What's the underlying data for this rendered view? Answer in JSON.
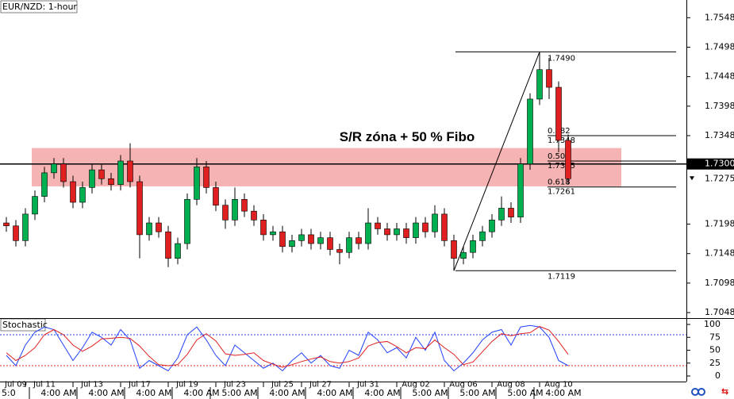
{
  "chart_data": {
    "type": "candlestick",
    "title": "EUR/NZD: 1-hour",
    "categories": [
      null,
      "Jul 09",
      null,
      null,
      "Jul 11",
      null,
      null,
      null,
      null,
      "Jul 13",
      null,
      null,
      null,
      null,
      "Jul 17",
      null,
      null,
      null,
      null,
      "Jul 19",
      null,
      null,
      null,
      null,
      "Jul 23",
      null,
      null,
      null,
      null,
      "Jul 25",
      null,
      null,
      null,
      "Jul 27",
      null,
      null,
      null,
      null,
      "Jul 31",
      null,
      null,
      null,
      null,
      "Aug 02",
      null,
      null,
      null,
      null,
      "Aug 06",
      null,
      null,
      null,
      null,
      "Aug 08",
      null,
      null,
      null,
      null,
      "Aug 10",
      null
    ],
    "time_labels": [
      "5:0",
      null,
      null,
      null,
      null,
      "4:00 AM",
      null,
      null,
      null,
      null,
      "4:00 AM",
      null,
      null,
      null,
      null,
      "4:00 AM",
      null,
      null,
      null,
      null,
      "4:00 AM",
      null,
      null,
      null,
      "5:00 AM",
      null,
      null,
      null,
      null,
      "4:00 AM",
      null,
      null,
      null,
      null,
      "4:00 AM",
      null,
      null,
      null,
      null,
      "4:00 AM",
      null,
      null,
      null,
      null,
      "5:00 AM",
      null,
      null,
      null,
      null,
      "5:00 AM",
      null,
      null,
      null,
      null,
      "5:00 AM",
      null,
      null,
      null,
      "4:00 AM",
      null
    ],
    "open": [
      1.72,
      1.7195,
      1.717,
      1.7215,
      1.7245,
      1.7285,
      1.73,
      1.727,
      1.7235,
      1.726,
      1.729,
      1.7275,
      1.7265,
      1.7305,
      1.727,
      1.718,
      1.72,
      1.7185,
      1.714,
      1.7165,
      1.724,
      1.7295,
      1.726,
      1.723,
      1.7205,
      1.724,
      1.722,
      1.7205,
      1.718,
      1.7185,
      1.716,
      1.717,
      1.718,
      1.7165,
      1.7175,
      1.7155,
      1.715,
      1.7175,
      1.7165,
      1.72,
      1.719,
      1.718,
      1.719,
      1.7175,
      1.72,
      1.7185,
      1.7215,
      1.717,
      1.714,
      1.715,
      1.717,
      1.7185,
      1.7205,
      1.7225,
      1.721,
      1.73,
      1.741,
      1.746,
      1.743,
      1.734
    ],
    "high": [
      1.721,
      1.7205,
      1.7225,
      1.7255,
      1.7295,
      1.731,
      1.731,
      1.728,
      1.727,
      1.73,
      1.73,
      1.7285,
      1.7315,
      1.7335,
      1.728,
      1.721,
      1.721,
      1.7195,
      1.7175,
      1.725,
      1.731,
      1.7305,
      1.727,
      1.724,
      1.726,
      1.725,
      1.723,
      1.7215,
      1.7195,
      1.7195,
      1.718,
      1.719,
      1.719,
      1.7185,
      1.7185,
      1.7165,
      1.7185,
      1.7185,
      1.7225,
      1.721,
      1.72,
      1.72,
      1.72,
      1.721,
      1.721,
      1.723,
      1.7225,
      1.718,
      1.716,
      1.718,
      1.7195,
      1.7215,
      1.7245,
      1.7235,
      1.731,
      1.742,
      1.749,
      1.748,
      1.744,
      1.735
    ],
    "low": [
      1.7185,
      1.716,
      1.716,
      1.7205,
      1.7235,
      1.7275,
      1.726,
      1.7225,
      1.7225,
      1.725,
      1.7265,
      1.7255,
      1.7255,
      1.726,
      1.714,
      1.717,
      1.7175,
      1.7125,
      1.713,
      1.7155,
      1.723,
      1.725,
      1.722,
      1.719,
      1.7195,
      1.721,
      1.7195,
      1.717,
      1.717,
      1.715,
      1.715,
      1.716,
      1.7155,
      1.7155,
      1.7145,
      1.713,
      1.714,
      1.7155,
      1.7155,
      1.718,
      1.717,
      1.717,
      1.7165,
      1.7165,
      1.7175,
      1.7175,
      1.716,
      1.7119,
      1.713,
      1.714,
      1.716,
      1.7175,
      1.7195,
      1.72,
      1.72,
      1.729,
      1.74,
      1.741,
      1.732,
      1.7265
    ],
    "close": [
      1.7195,
      1.717,
      1.7215,
      1.7245,
      1.7285,
      1.73,
      1.727,
      1.7235,
      1.726,
      1.729,
      1.7275,
      1.7265,
      1.7305,
      1.727,
      1.718,
      1.72,
      1.7185,
      1.714,
      1.7165,
      1.724,
      1.7295,
      1.726,
      1.723,
      1.7205,
      1.724,
      1.722,
      1.7205,
      1.718,
      1.7185,
      1.716,
      1.717,
      1.718,
      1.7165,
      1.7175,
      1.7155,
      1.715,
      1.7175,
      1.7165,
      1.72,
      1.719,
      1.718,
      1.719,
      1.7175,
      1.72,
      1.7185,
      1.7215,
      1.717,
      1.714,
      1.715,
      1.717,
      1.7185,
      1.7205,
      1.7225,
      1.721,
      1.73,
      1.741,
      1.746,
      1.743,
      1.734,
      1.7275
    ],
    "up_color": "#00b050",
    "down_color": "#e02020",
    "ylim": [
      1.704,
      1.7578
    ],
    "yticks": [
      1.7548,
      1.7498,
      1.7448,
      1.7398,
      1.7348,
      1.7198,
      1.7148,
      1.7098,
      1.7048
    ],
    "price_markers": [
      {
        "value": 1.73,
        "label": "1.7300"
      },
      {
        "value": 1.7275,
        "label": "1.7275"
      }
    ],
    "horizontal_line": 1.73,
    "zone": {
      "low": 1.7262,
      "high": 1.7327,
      "label": "S/R zóna + 50 % Fibo",
      "color": "#f4a6a6"
    },
    "fibonacci": [
      {
        "value": 1.749,
        "label": "1.7490"
      },
      {
        "value": 1.7348,
        "label": "1.7348",
        "ratio": "0.382"
      },
      {
        "value": 1.7305,
        "label": "1.7305",
        "ratio": "0.500"
      },
      {
        "value": 1.7261,
        "label": "1.7261",
        "ratio": "0.618"
      },
      {
        "value": 1.7119,
        "label": "1.7119"
      }
    ],
    "stochastic": {
      "title": "Stochastic",
      "ylim": [
        0,
        100
      ],
      "yticks": [
        0,
        25,
        50,
        75,
        100
      ],
      "levels": [
        20,
        80
      ],
      "series": [
        {
          "color": "#2040ff",
          "values": [
            40,
            20,
            60,
            85,
            95,
            90,
            60,
            30,
            55,
            85,
            75,
            60,
            90,
            70,
            15,
            30,
            20,
            10,
            35,
            80,
            95,
            70,
            40,
            20,
            60,
            45,
            30,
            15,
            25,
            10,
            30,
            45,
            25,
            40,
            20,
            15,
            50,
            40,
            85,
            70,
            45,
            55,
            35,
            75,
            50,
            85,
            30,
            10,
            25,
            45,
            70,
            85,
            90,
            60,
            95,
            98,
            95,
            75,
            30,
            20
          ]
        },
        {
          "color": "#e02020",
          "values": [
            45,
            30,
            40,
            55,
            80,
            90,
            80,
            60,
            48,
            58,
            72,
            73,
            75,
            73,
            58,
            38,
            22,
            20,
            22,
            42,
            70,
            82,
            68,
            43,
            40,
            42,
            45,
            30,
            23,
            17,
            22,
            28,
            33,
            37,
            28,
            25,
            28,
            35,
            58,
            65,
            67,
            57,
            45,
            55,
            53,
            70,
            55,
            42,
            22,
            27,
            47,
            67,
            82,
            78,
            82,
            84,
            96,
            89,
            67,
            42
          ]
        }
      ]
    }
  }
}
